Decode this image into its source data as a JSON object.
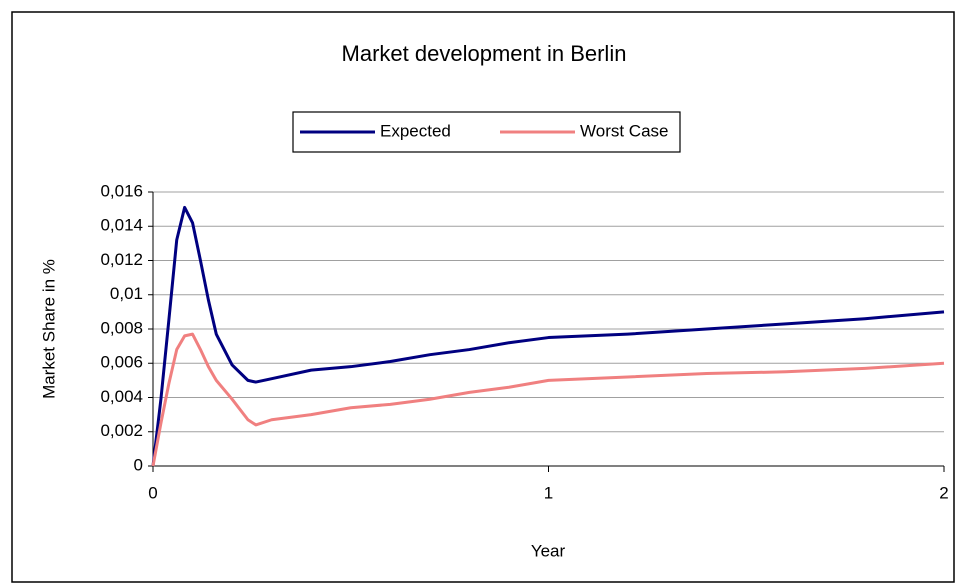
{
  "chart_data": {
    "type": "line",
    "title": "Market development in Berlin",
    "x_label": "Year",
    "y_label": "Market Share in %",
    "x": [
      0,
      0.02,
      0.04,
      0.06,
      0.08,
      0.1,
      0.12,
      0.14,
      0.16,
      0.2,
      0.24,
      0.26,
      0.3,
      0.4,
      0.5,
      0.6,
      0.7,
      0.8,
      0.9,
      1.0,
      1.2,
      1.4,
      1.6,
      1.8,
      2.0
    ],
    "series": [
      {
        "name": "Expected",
        "color": "#000080",
        "values": [
          0,
          0.0039,
          0.0085,
          0.0132,
          0.0151,
          0.0142,
          0.012,
          0.0097,
          0.0077,
          0.0059,
          0.005,
          0.0049,
          0.0051,
          0.0056,
          0.0058,
          0.0061,
          0.0065,
          0.0068,
          0.0072,
          0.0075,
          0.0077,
          0.008,
          0.0083,
          0.0086,
          0.009
        ]
      },
      {
        "name": "Worst Case",
        "color": "#f08080",
        "values": [
          0,
          0.0025,
          0.0048,
          0.0068,
          0.0076,
          0.0077,
          0.0068,
          0.0058,
          0.005,
          0.0039,
          0.0027,
          0.0024,
          0.0027,
          0.003,
          0.0034,
          0.0036,
          0.0039,
          0.0043,
          0.0046,
          0.005,
          0.0052,
          0.0054,
          0.0055,
          0.0057,
          0.006
        ]
      }
    ],
    "xlim": [
      0,
      2
    ],
    "xticks": [
      0,
      1,
      2
    ],
    "ylim": [
      0,
      0.016
    ],
    "yticks": [
      0,
      {
        "value": 0.002,
        "label": "0,002"
      },
      {
        "value": 0.004,
        "label": "0,004"
      },
      {
        "value": 0.006,
        "label": "0,006"
      },
      {
        "value": 0.008,
        "label": "0,008"
      },
      {
        "value": 0.01,
        "label": "0,01"
      },
      {
        "value": 0.012,
        "label": "0,012"
      },
      {
        "value": 0.014,
        "label": "0,014"
      },
      {
        "value": 0.016,
        "label": "0,016"
      }
    ],
    "grid": true,
    "legend": "top"
  }
}
